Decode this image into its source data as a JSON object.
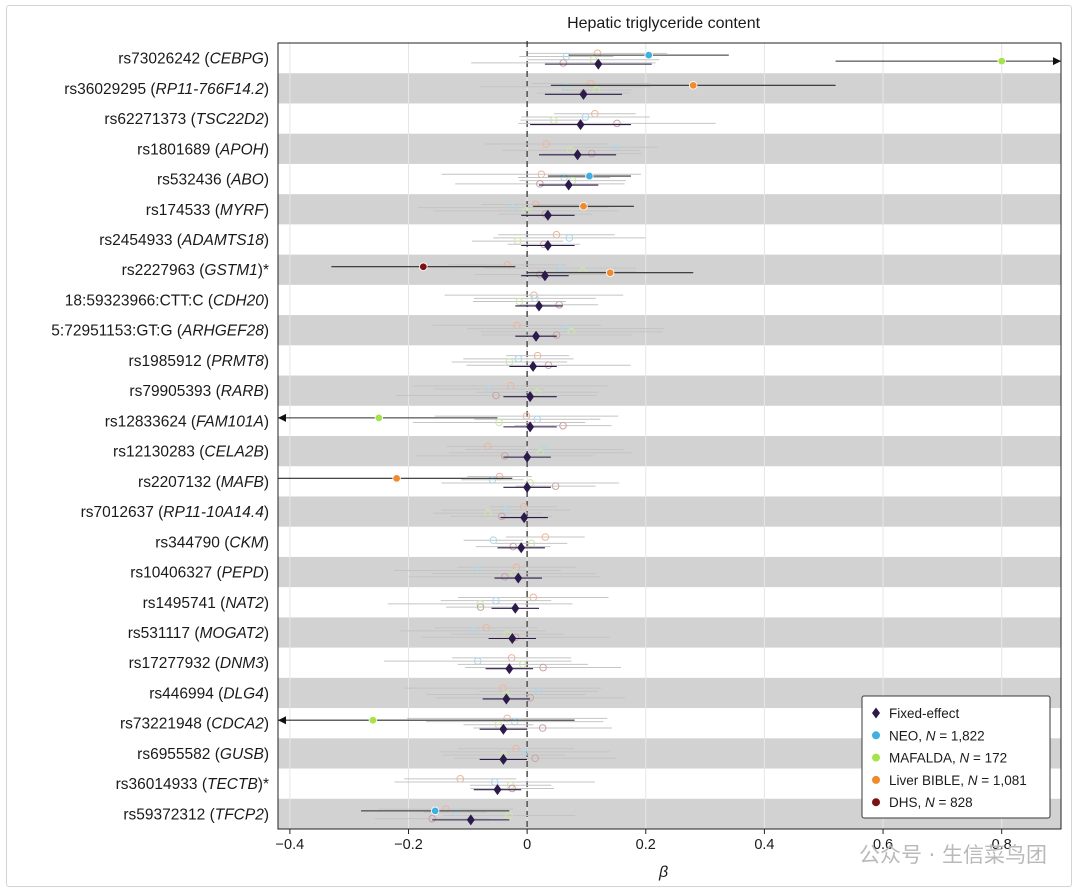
{
  "chart_data": {
    "type": "forest",
    "title": "Hepatic triglyceride content",
    "xlabel": "β",
    "xlim": [
      -0.42,
      0.9
    ],
    "xticks": [
      "−0.4",
      "−0.2",
      "0",
      "0.2",
      "0.4",
      "0.6",
      "0.8"
    ],
    "xtick_values": [
      -0.4,
      -0.2,
      0,
      0.2,
      0.4,
      0.6,
      0.8
    ],
    "grid": "vertical",
    "reference_line": 0,
    "legend_position": "bottom-right",
    "series": [
      {
        "name": "Fixed-effect",
        "note": "",
        "color": "#2b1a4a",
        "marker": "diamond"
      },
      {
        "name": "NEO",
        "note": "N = 1,822",
        "color": "#3fb0e0",
        "marker": "circle"
      },
      {
        "name": "MAFALDA",
        "note": "N = 172",
        "color": "#a6e34a",
        "marker": "circle"
      },
      {
        "name": "Liver BIBLE",
        "note": "N = 1,081",
        "color": "#f08a2c",
        "marker": "circle"
      },
      {
        "name": "DHS",
        "note": "N = 828",
        "color": "#7d1010",
        "marker": "circle"
      }
    ],
    "rows": [
      {
        "rsid": "rs73026242",
        "gene": "CEBPG",
        "mark": "",
        "fixed": [
          0.12,
          0.03,
          0.21
        ],
        "highlight": [
          {
            "cohort": "NEO",
            "beta": 0.205,
            "lo": 0.07,
            "hi": 0.34
          },
          {
            "cohort": "MAFALDA",
            "beta": 0.8,
            "lo": 0.52,
            "hi": 0.9,
            "arrow": "right"
          }
        ]
      },
      {
        "rsid": "rs36029295",
        "gene": "RP11-766F14.2",
        "mark": "",
        "fixed": [
          0.095,
          0.03,
          0.16
        ],
        "highlight": [
          {
            "cohort": "Liver BIBLE",
            "beta": 0.28,
            "lo": 0.04,
            "hi": 0.52
          }
        ]
      },
      {
        "rsid": "rs62271373",
        "gene": "TSC22D2",
        "mark": "",
        "fixed": [
          0.09,
          0.005,
          0.175
        ],
        "highlight": []
      },
      {
        "rsid": "rs1801689",
        "gene": "APOH",
        "mark": "",
        "fixed": [
          0.085,
          0.02,
          0.15
        ],
        "highlight": []
      },
      {
        "rsid": "rs532436",
        "gene": "ABO",
        "mark": "",
        "fixed": [
          0.07,
          0.02,
          0.12
        ],
        "highlight": [
          {
            "cohort": "NEO",
            "beta": 0.105,
            "lo": 0.035,
            "hi": 0.175
          }
        ]
      },
      {
        "rsid": "rs174533",
        "gene": "MYRF",
        "mark": "",
        "fixed": [
          0.035,
          -0.01,
          0.08
        ],
        "highlight": [
          {
            "cohort": "Liver BIBLE",
            "beta": 0.095,
            "lo": 0.01,
            "hi": 0.18
          }
        ]
      },
      {
        "rsid": "rs2454933",
        "gene": "ADAMTS18",
        "mark": "",
        "fixed": [
          0.035,
          -0.01,
          0.08
        ],
        "highlight": []
      },
      {
        "rsid": "rs2227963",
        "gene": "GSTM1",
        "mark": "*",
        "fixed": [
          0.03,
          -0.01,
          0.07
        ],
        "highlight": [
          {
            "cohort": "DHS",
            "beta": -0.175,
            "lo": -0.33,
            "hi": -0.02
          },
          {
            "cohort": "Liver BIBLE",
            "beta": 0.14,
            "lo": 0.0,
            "hi": 0.28
          }
        ]
      },
      {
        "rsid": "18:59323966:CTT:C",
        "gene": "CDH20",
        "mark": "",
        "fixed": [
          0.02,
          -0.02,
          0.06
        ],
        "highlight": []
      },
      {
        "rsid": "5:72951153:GT:G",
        "gene": "ARHGEF28",
        "mark": "",
        "fixed": [
          0.015,
          -0.02,
          0.05
        ],
        "highlight": []
      },
      {
        "rsid": "rs1985912",
        "gene": "PRMT8",
        "mark": "",
        "fixed": [
          0.01,
          -0.03,
          0.05
        ],
        "highlight": []
      },
      {
        "rsid": "rs79905393",
        "gene": "RARB",
        "mark": "",
        "fixed": [
          0.005,
          -0.04,
          0.05
        ],
        "highlight": []
      },
      {
        "rsid": "rs12833624",
        "gene": "FAM101A",
        "mark": "",
        "fixed": [
          0.005,
          -0.04,
          0.05
        ],
        "highlight": [
          {
            "cohort": "MAFALDA",
            "beta": -0.25,
            "lo": -0.42,
            "hi": -0.05,
            "arrow": "left"
          }
        ]
      },
      {
        "rsid": "rs12130283",
        "gene": "CELA2B",
        "mark": "",
        "fixed": [
          0.0,
          -0.04,
          0.04
        ],
        "highlight": []
      },
      {
        "rsid": "rs2207132",
        "gene": "MAFB",
        "mark": "",
        "fixed": [
          0.0,
          -0.04,
          0.04
        ],
        "highlight": [
          {
            "cohort": "Liver BIBLE",
            "beta": -0.22,
            "lo": -0.42,
            "hi": -0.025
          }
        ]
      },
      {
        "rsid": "rs7012637",
        "gene": "RP11-10A14.4",
        "mark": "",
        "fixed": [
          -0.005,
          -0.045,
          0.035
        ],
        "highlight": []
      },
      {
        "rsid": "rs344790",
        "gene": "CKM",
        "mark": "",
        "fixed": [
          -0.01,
          -0.05,
          0.03
        ],
        "highlight": []
      },
      {
        "rsid": "rs10406327",
        "gene": "PEPD",
        "mark": "",
        "fixed": [
          -0.015,
          -0.055,
          0.025
        ],
        "highlight": []
      },
      {
        "rsid": "rs1495741",
        "gene": "NAT2",
        "mark": "",
        "fixed": [
          -0.02,
          -0.06,
          0.02
        ],
        "highlight": []
      },
      {
        "rsid": "rs531117",
        "gene": "MOGAT2",
        "mark": "",
        "fixed": [
          -0.025,
          -0.065,
          0.015
        ],
        "highlight": []
      },
      {
        "rsid": "rs17277932",
        "gene": "DNM3",
        "mark": "",
        "fixed": [
          -0.03,
          -0.07,
          0.01
        ],
        "highlight": []
      },
      {
        "rsid": "rs446994",
        "gene": "DLG4",
        "mark": "",
        "fixed": [
          -0.035,
          -0.075,
          0.005
        ],
        "highlight": []
      },
      {
        "rsid": "rs73221948",
        "gene": "CDCA2",
        "mark": "",
        "fixed": [
          -0.04,
          -0.08,
          0.0
        ],
        "highlight": [
          {
            "cohort": "MAFALDA",
            "beta": -0.26,
            "lo": -0.42,
            "hi": 0.08,
            "arrow": "left"
          }
        ]
      },
      {
        "rsid": "rs6955582",
        "gene": "GUSB",
        "mark": "",
        "fixed": [
          -0.04,
          -0.08,
          0.0
        ],
        "highlight": []
      },
      {
        "rsid": "rs36014933",
        "gene": "TECTB",
        "mark": "*",
        "fixed": [
          -0.05,
          -0.09,
          -0.01
        ],
        "highlight": []
      },
      {
        "rsid": "rs59372312",
        "gene": "TFCP2",
        "mark": "",
        "fixed": [
          -0.095,
          -0.16,
          -0.03
        ],
        "highlight": [
          {
            "cohort": "NEO",
            "beta": -0.155,
            "lo": -0.28,
            "hi": -0.03
          }
        ]
      }
    ]
  },
  "watermark": "公众号 · 生信菜鸟团"
}
